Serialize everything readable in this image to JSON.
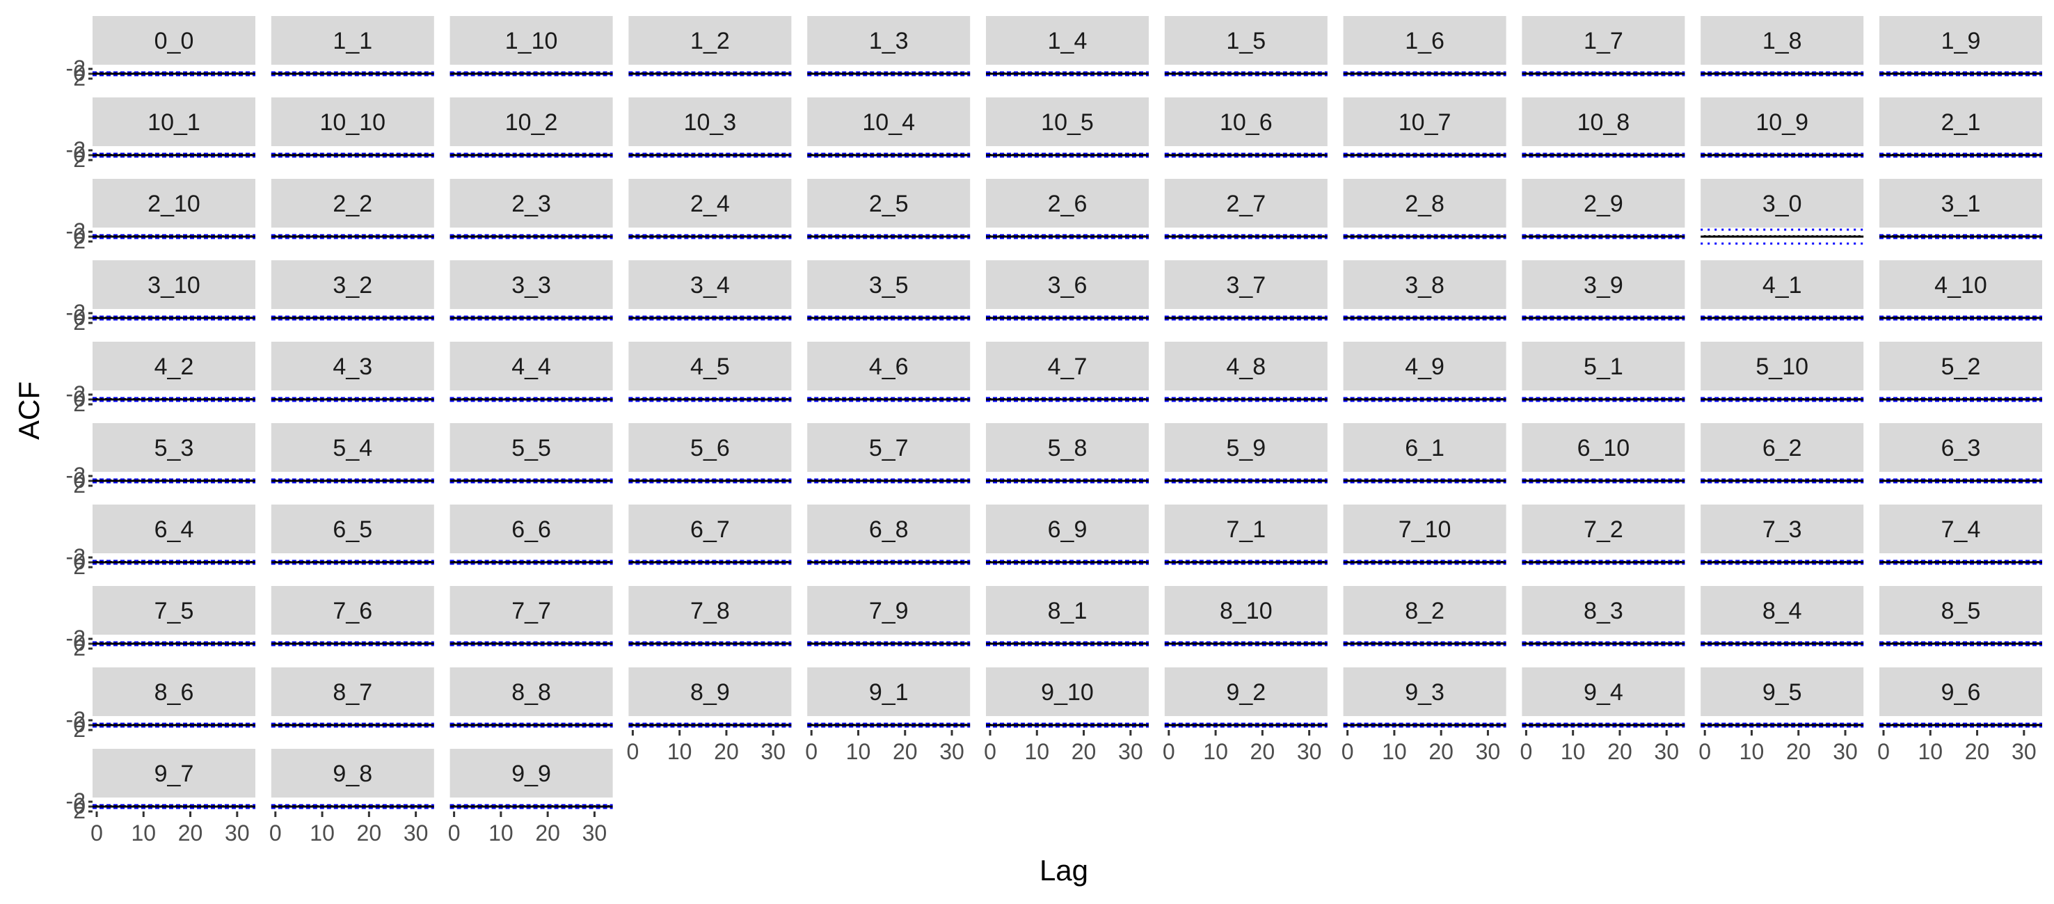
{
  "chart_data": {
    "type": "acf_facet_grid",
    "xlabel": "Lag",
    "ylabel": "ACF",
    "xlim": [
      0,
      33
    ],
    "ylim": [
      -2,
      2
    ],
    "x_ticks": [
      0,
      10,
      20,
      30
    ],
    "y_ticks": [
      -2,
      0,
      2
    ],
    "lags": [
      0,
      1,
      2,
      3,
      4,
      5,
      6,
      7,
      8,
      9,
      10,
      11,
      12,
      13,
      14,
      15,
      16,
      17,
      18,
      19,
      20,
      21,
      22,
      23,
      24,
      25,
      26,
      27,
      28,
      29,
      30,
      31,
      32,
      33
    ],
    "acf_values_approx": 0,
    "confidence_band": 0.05,
    "confidence_band_wide_panel": "3_0",
    "confidence_band_wide": 0.4,
    "facet_columns": 11,
    "panels": [
      "0_0",
      "1_1",
      "1_10",
      "1_2",
      "1_3",
      "1_4",
      "1_5",
      "1_6",
      "1_7",
      "1_8",
      "1_9",
      "10_1",
      "10_10",
      "10_2",
      "10_3",
      "10_4",
      "10_5",
      "10_6",
      "10_7",
      "10_8",
      "10_9",
      "2_1",
      "2_10",
      "2_2",
      "2_3",
      "2_4",
      "2_5",
      "2_6",
      "2_7",
      "2_8",
      "2_9",
      "3_0",
      "3_1",
      "3_10",
      "3_2",
      "3_3",
      "3_4",
      "3_5",
      "3_6",
      "3_7",
      "3_8",
      "3_9",
      "4_1",
      "4_10",
      "4_2",
      "4_3",
      "4_4",
      "4_5",
      "4_6",
      "4_7",
      "4_8",
      "4_9",
      "5_1",
      "5_10",
      "5_2",
      "5_3",
      "5_4",
      "5_5",
      "5_6",
      "5_7",
      "5_8",
      "5_9",
      "6_1",
      "6_10",
      "6_2",
      "6_3",
      "6_4",
      "6_5",
      "6_6",
      "6_7",
      "6_8",
      "6_9",
      "7_1",
      "7_10",
      "7_2",
      "7_3",
      "7_4",
      "7_5",
      "7_6",
      "7_7",
      "7_8",
      "7_9",
      "8_1",
      "8_10",
      "8_2",
      "8_3",
      "8_4",
      "8_5",
      "8_6",
      "8_7",
      "8_8",
      "8_9",
      "9_1",
      "9_10",
      "9_2",
      "9_3",
      "9_4",
      "9_5",
      "9_6",
      "9_7",
      "9_8",
      "9_9"
    ],
    "colors": {
      "strip_background": "#d9d9d9",
      "acf_segment": "#000000",
      "confidence_line": "#0000ff",
      "zero_line": "#000000",
      "tick_label": "#4d4d4d"
    },
    "grid": false,
    "legend": "none"
  }
}
